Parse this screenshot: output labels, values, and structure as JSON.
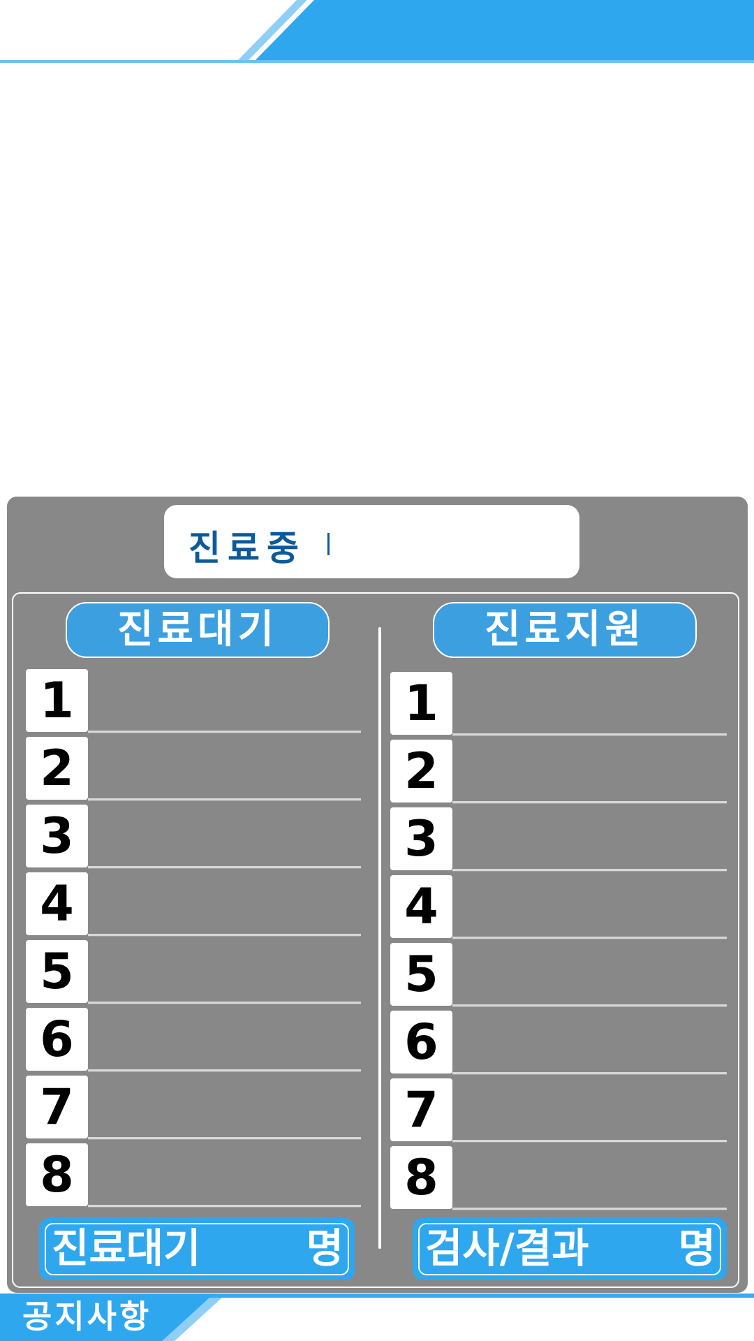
{
  "colors": {
    "accent_blue": "#2ea7ef",
    "header_blue": "#3c9fe0",
    "panel_grey": "#888888",
    "title_navy": "#0d5a9a"
  },
  "now_treating": {
    "label": "진료중"
  },
  "columns": {
    "waiting": {
      "header": "진료대기",
      "numbers": [
        "1",
        "2",
        "3",
        "4",
        "5",
        "6",
        "7",
        "8"
      ],
      "footer_label": "진료대기",
      "footer_unit": "명"
    },
    "support": {
      "header": "진료지원",
      "numbers": [
        "1",
        "2",
        "3",
        "4",
        "5",
        "6",
        "7",
        "8"
      ],
      "footer_label": "검사/결과",
      "footer_unit": "명"
    }
  },
  "notice": {
    "label": "공지사항"
  }
}
